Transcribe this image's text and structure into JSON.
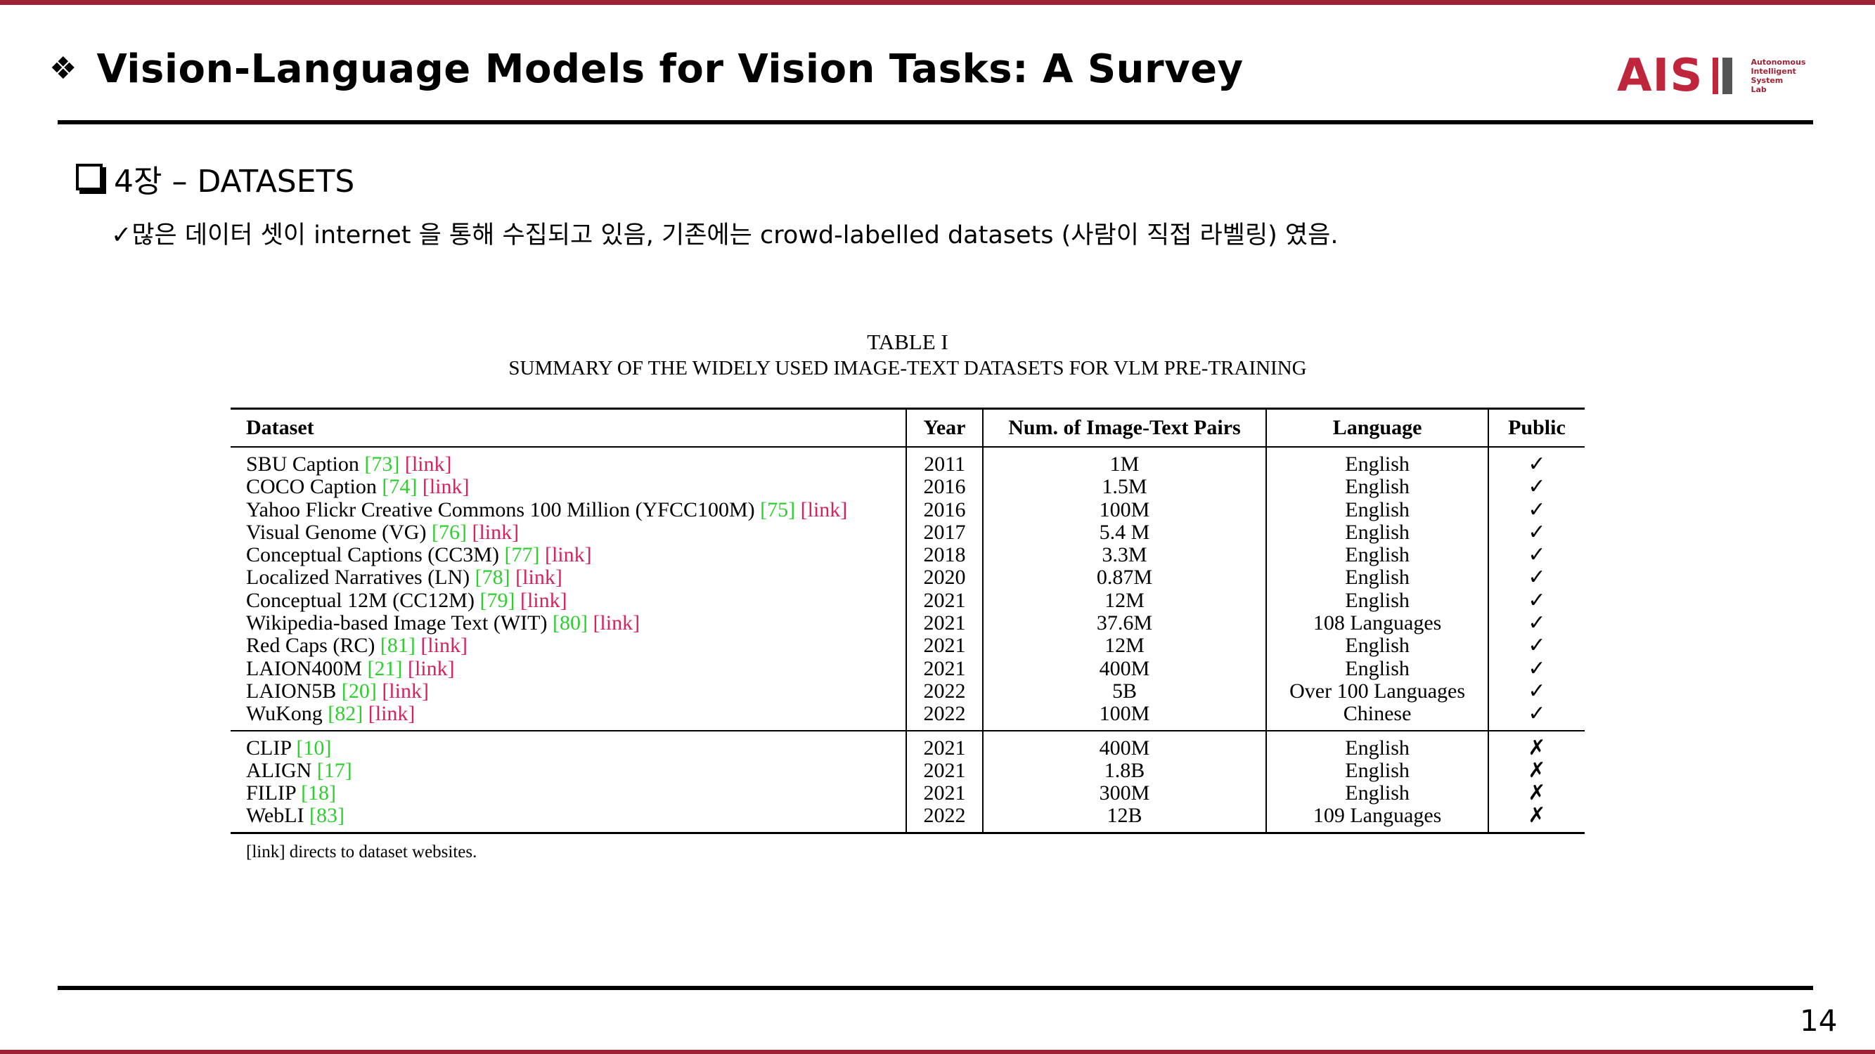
{
  "slide": {
    "title_bullet": "❖",
    "title": "Vision-Language Models for Vision Tasks: A Survey",
    "logo": {
      "word": "AIS",
      "sub_lines": [
        "Autonomous",
        "Intelligent",
        "System",
        "Lab"
      ]
    },
    "section": "4장 – DATASETS",
    "bullet": "✓많은 데이터 셋이 internet 을 통해 수집되고 있음, 기존에는 crowd-labelled datasets (사람이 직접 라벨링) 였음.",
    "page_number": "14",
    "accent_color": "#9b2335"
  },
  "table": {
    "caption_line1": "TABLE I",
    "caption_line2": "SUMMARY OF THE WIDELY USED IMAGE-TEXT DATASETS FOR VLM PRE-TRAINING",
    "headers": [
      "Dataset",
      "Year",
      "Num. of Image-Text Pairs",
      "Language",
      "Public"
    ],
    "group1": [
      {
        "name": "SBU Caption",
        "ref": "[73]",
        "link": "[link]",
        "year": "2011",
        "pairs": "1M",
        "lang": "English",
        "public": "✓"
      },
      {
        "name": "COCO Caption",
        "ref": "[74]",
        "link": "[link]",
        "year": "2016",
        "pairs": "1.5M",
        "lang": "English",
        "public": "✓"
      },
      {
        "name": "Yahoo Flickr Creative Commons 100 Million (YFCC100M)",
        "ref": "[75]",
        "link": "[link]",
        "year": "2016",
        "pairs": "100M",
        "lang": "English",
        "public": "✓"
      },
      {
        "name": "Visual Genome (VG)",
        "ref": "[76]",
        "link": "[link]",
        "year": "2017",
        "pairs": "5.4 M",
        "lang": "English",
        "public": "✓"
      },
      {
        "name": "Conceptual Captions (CC3M)",
        "ref": "[77]",
        "link": "[link]",
        "year": "2018",
        "pairs": "3.3M",
        "lang": "English",
        "public": "✓"
      },
      {
        "name": "Localized Narratives (LN)",
        "ref": "[78]",
        "link": "[link]",
        "year": "2020",
        "pairs": "0.87M",
        "lang": "English",
        "public": "✓"
      },
      {
        "name": "Conceptual 12M (CC12M)",
        "ref": "[79]",
        "link": "[link]",
        "year": "2021",
        "pairs": "12M",
        "lang": "English",
        "public": "✓"
      },
      {
        "name": "Wikipedia-based Image Text (WIT)",
        "ref": "[80]",
        "link": "[link]",
        "year": "2021",
        "pairs": "37.6M",
        "lang": "108 Languages",
        "public": "✓"
      },
      {
        "name": "Red Caps (RC)",
        "ref": "[81]",
        "link": "[link]",
        "year": "2021",
        "pairs": "12M",
        "lang": "English",
        "public": "✓"
      },
      {
        "name": "LAION400M",
        "ref": "[21]",
        "link": "[link]",
        "year": "2021",
        "pairs": "400M",
        "lang": "English",
        "public": "✓"
      },
      {
        "name": "LAION5B",
        "ref": "[20]",
        "link": "[link]",
        "year": "2022",
        "pairs": "5B",
        "lang": "Over 100 Languages",
        "public": "✓"
      },
      {
        "name": "WuKong",
        "ref": "[82]",
        "link": "[link]",
        "year": "2022",
        "pairs": "100M",
        "lang": "Chinese",
        "public": "✓"
      }
    ],
    "group2": [
      {
        "name": "CLIP",
        "ref": "[10]",
        "year": "2021",
        "pairs": "400M",
        "lang": "English",
        "public": "✗"
      },
      {
        "name": "ALIGN",
        "ref": "[17]",
        "year": "2021",
        "pairs": "1.8B",
        "lang": "English",
        "public": "✗"
      },
      {
        "name": "FILIP",
        "ref": "[18]",
        "year": "2021",
        "pairs": "300M",
        "lang": "English",
        "public": "✗"
      },
      {
        "name": "WebLI",
        "ref": "[83]",
        "year": "2022",
        "pairs": "12B",
        "lang": "109 Languages",
        "public": "✗"
      }
    ],
    "footnote": "[link] directs to dataset websites.",
    "ref_color": "#2ecf2e",
    "link_color": "#d9215a"
  }
}
